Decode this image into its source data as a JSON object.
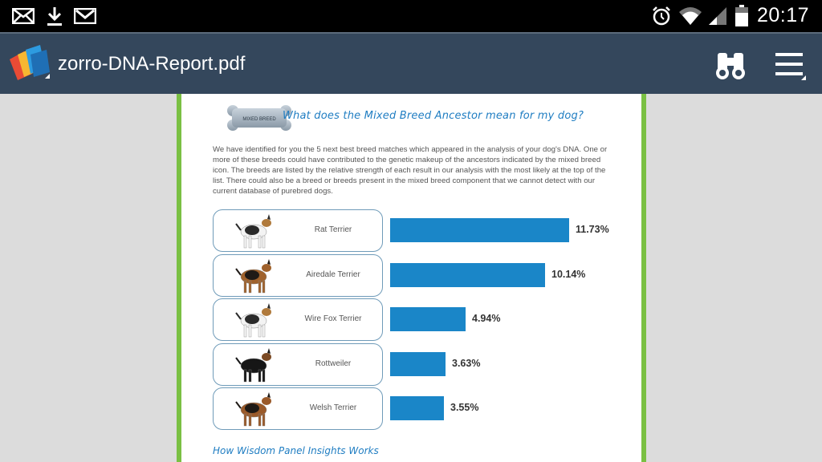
{
  "status_bar": {
    "time": "20:17",
    "icons": [
      "mail-icon",
      "download-icon",
      "gmail-icon",
      "alarm-icon",
      "wifi-icon",
      "signal-icon",
      "battery-icon"
    ]
  },
  "app_bar": {
    "title": "zorro-DNA-Report.pdf",
    "icons": [
      "app-logo-icon",
      "binoculars-search-icon",
      "menu-icon"
    ]
  },
  "document": {
    "badge_text": "MIXED BREED",
    "heading": "What does the Mixed Breed Ancestor mean for my dog?",
    "paragraph": "We have identified for you the 5 next best breed matches which appeared in the analysis of your dog's DNA. One or more of these breeds could have contributed to the genetic makeup of the ancestors indicated by the mixed breed icon. The breeds are listed by the relative strength of each result in our analysis with the most likely at the top of the list. There could also be a breed or breeds present in the mixed breed component that we cannot detect with our current database of purebred dogs.",
    "breeds": [
      {
        "name": "Rat Terrier",
        "percent": "11.73%",
        "value": 11.73
      },
      {
        "name": "Airedale Terrier",
        "percent": "10.14%",
        "value": 10.14
      },
      {
        "name": "Wire Fox Terrier",
        "percent": "4.94%",
        "value": 4.94
      },
      {
        "name": "Rottweiler",
        "percent": "3.63%",
        "value": 3.63
      },
      {
        "name": "Welsh Terrier",
        "percent": "3.55%",
        "value": 3.55
      }
    ],
    "footer_heading": "How Wisdom Panel Insights Works"
  },
  "colors": {
    "app_bar": "#34475c",
    "page_border": "#7ac043",
    "bar": "#1a86c8",
    "heading": "#1f7dc2"
  }
}
